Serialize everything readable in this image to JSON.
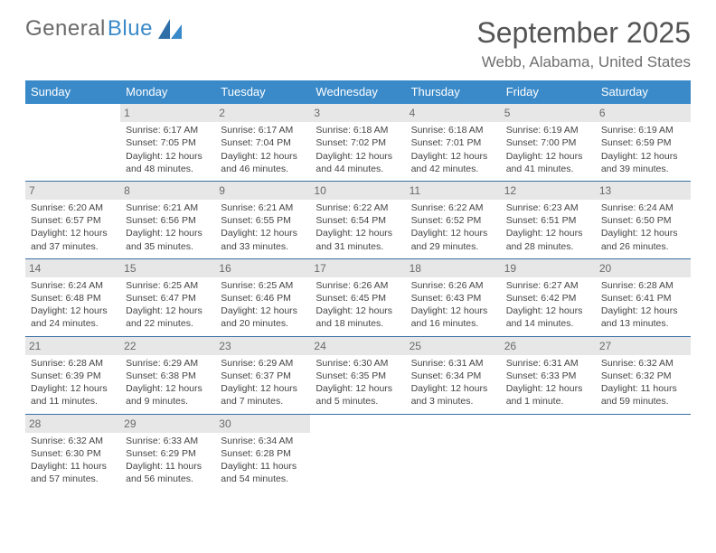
{
  "brand": {
    "general": "General",
    "blue": "Blue"
  },
  "header": {
    "month_title": "September 2025",
    "location": "Webb, Alabama, United States"
  },
  "calendar": {
    "day_names": [
      "Sunday",
      "Monday",
      "Tuesday",
      "Wednesday",
      "Thursday",
      "Friday",
      "Saturday"
    ],
    "colors": {
      "header_bg": "#3a8ac9",
      "header_text": "#ffffff",
      "daynum_bg": "#e7e7e7",
      "row_border": "#3a6fa6",
      "text": "#444444"
    },
    "fonts": {
      "month_title_pt": 32,
      "location_pt": 17,
      "dayname_pt": 13,
      "daynum_pt": 12,
      "detail_pt": 10.5
    },
    "weeks": [
      [
        null,
        {
          "n": "1",
          "sunrise": "Sunrise: 6:17 AM",
          "sunset": "Sunset: 7:05 PM",
          "day1": "Daylight: 12 hours",
          "day2": "and 48 minutes."
        },
        {
          "n": "2",
          "sunrise": "Sunrise: 6:17 AM",
          "sunset": "Sunset: 7:04 PM",
          "day1": "Daylight: 12 hours",
          "day2": "and 46 minutes."
        },
        {
          "n": "3",
          "sunrise": "Sunrise: 6:18 AM",
          "sunset": "Sunset: 7:02 PM",
          "day1": "Daylight: 12 hours",
          "day2": "and 44 minutes."
        },
        {
          "n": "4",
          "sunrise": "Sunrise: 6:18 AM",
          "sunset": "Sunset: 7:01 PM",
          "day1": "Daylight: 12 hours",
          "day2": "and 42 minutes."
        },
        {
          "n": "5",
          "sunrise": "Sunrise: 6:19 AM",
          "sunset": "Sunset: 7:00 PM",
          "day1": "Daylight: 12 hours",
          "day2": "and 41 minutes."
        },
        {
          "n": "6",
          "sunrise": "Sunrise: 6:19 AM",
          "sunset": "Sunset: 6:59 PM",
          "day1": "Daylight: 12 hours",
          "day2": "and 39 minutes."
        }
      ],
      [
        {
          "n": "7",
          "sunrise": "Sunrise: 6:20 AM",
          "sunset": "Sunset: 6:57 PM",
          "day1": "Daylight: 12 hours",
          "day2": "and 37 minutes."
        },
        {
          "n": "8",
          "sunrise": "Sunrise: 6:21 AM",
          "sunset": "Sunset: 6:56 PM",
          "day1": "Daylight: 12 hours",
          "day2": "and 35 minutes."
        },
        {
          "n": "9",
          "sunrise": "Sunrise: 6:21 AM",
          "sunset": "Sunset: 6:55 PM",
          "day1": "Daylight: 12 hours",
          "day2": "and 33 minutes."
        },
        {
          "n": "10",
          "sunrise": "Sunrise: 6:22 AM",
          "sunset": "Sunset: 6:54 PM",
          "day1": "Daylight: 12 hours",
          "day2": "and 31 minutes."
        },
        {
          "n": "11",
          "sunrise": "Sunrise: 6:22 AM",
          "sunset": "Sunset: 6:52 PM",
          "day1": "Daylight: 12 hours",
          "day2": "and 29 minutes."
        },
        {
          "n": "12",
          "sunrise": "Sunrise: 6:23 AM",
          "sunset": "Sunset: 6:51 PM",
          "day1": "Daylight: 12 hours",
          "day2": "and 28 minutes."
        },
        {
          "n": "13",
          "sunrise": "Sunrise: 6:24 AM",
          "sunset": "Sunset: 6:50 PM",
          "day1": "Daylight: 12 hours",
          "day2": "and 26 minutes."
        }
      ],
      [
        {
          "n": "14",
          "sunrise": "Sunrise: 6:24 AM",
          "sunset": "Sunset: 6:48 PM",
          "day1": "Daylight: 12 hours",
          "day2": "and 24 minutes."
        },
        {
          "n": "15",
          "sunrise": "Sunrise: 6:25 AM",
          "sunset": "Sunset: 6:47 PM",
          "day1": "Daylight: 12 hours",
          "day2": "and 22 minutes."
        },
        {
          "n": "16",
          "sunrise": "Sunrise: 6:25 AM",
          "sunset": "Sunset: 6:46 PM",
          "day1": "Daylight: 12 hours",
          "day2": "and 20 minutes."
        },
        {
          "n": "17",
          "sunrise": "Sunrise: 6:26 AM",
          "sunset": "Sunset: 6:45 PM",
          "day1": "Daylight: 12 hours",
          "day2": "and 18 minutes."
        },
        {
          "n": "18",
          "sunrise": "Sunrise: 6:26 AM",
          "sunset": "Sunset: 6:43 PM",
          "day1": "Daylight: 12 hours",
          "day2": "and 16 minutes."
        },
        {
          "n": "19",
          "sunrise": "Sunrise: 6:27 AM",
          "sunset": "Sunset: 6:42 PM",
          "day1": "Daylight: 12 hours",
          "day2": "and 14 minutes."
        },
        {
          "n": "20",
          "sunrise": "Sunrise: 6:28 AM",
          "sunset": "Sunset: 6:41 PM",
          "day1": "Daylight: 12 hours",
          "day2": "and 13 minutes."
        }
      ],
      [
        {
          "n": "21",
          "sunrise": "Sunrise: 6:28 AM",
          "sunset": "Sunset: 6:39 PM",
          "day1": "Daylight: 12 hours",
          "day2": "and 11 minutes."
        },
        {
          "n": "22",
          "sunrise": "Sunrise: 6:29 AM",
          "sunset": "Sunset: 6:38 PM",
          "day1": "Daylight: 12 hours",
          "day2": "and 9 minutes."
        },
        {
          "n": "23",
          "sunrise": "Sunrise: 6:29 AM",
          "sunset": "Sunset: 6:37 PM",
          "day1": "Daylight: 12 hours",
          "day2": "and 7 minutes."
        },
        {
          "n": "24",
          "sunrise": "Sunrise: 6:30 AM",
          "sunset": "Sunset: 6:35 PM",
          "day1": "Daylight: 12 hours",
          "day2": "and 5 minutes."
        },
        {
          "n": "25",
          "sunrise": "Sunrise: 6:31 AM",
          "sunset": "Sunset: 6:34 PM",
          "day1": "Daylight: 12 hours",
          "day2": "and 3 minutes."
        },
        {
          "n": "26",
          "sunrise": "Sunrise: 6:31 AM",
          "sunset": "Sunset: 6:33 PM",
          "day1": "Daylight: 12 hours",
          "day2": "and 1 minute."
        },
        {
          "n": "27",
          "sunrise": "Sunrise: 6:32 AM",
          "sunset": "Sunset: 6:32 PM",
          "day1": "Daylight: 11 hours",
          "day2": "and 59 minutes."
        }
      ],
      [
        {
          "n": "28",
          "sunrise": "Sunrise: 6:32 AM",
          "sunset": "Sunset: 6:30 PM",
          "day1": "Daylight: 11 hours",
          "day2": "and 57 minutes."
        },
        {
          "n": "29",
          "sunrise": "Sunrise: 6:33 AM",
          "sunset": "Sunset: 6:29 PM",
          "day1": "Daylight: 11 hours",
          "day2": "and 56 minutes."
        },
        {
          "n": "30",
          "sunrise": "Sunrise: 6:34 AM",
          "sunset": "Sunset: 6:28 PM",
          "day1": "Daylight: 11 hours",
          "day2": "and 54 minutes."
        },
        null,
        null,
        null,
        null
      ]
    ]
  }
}
